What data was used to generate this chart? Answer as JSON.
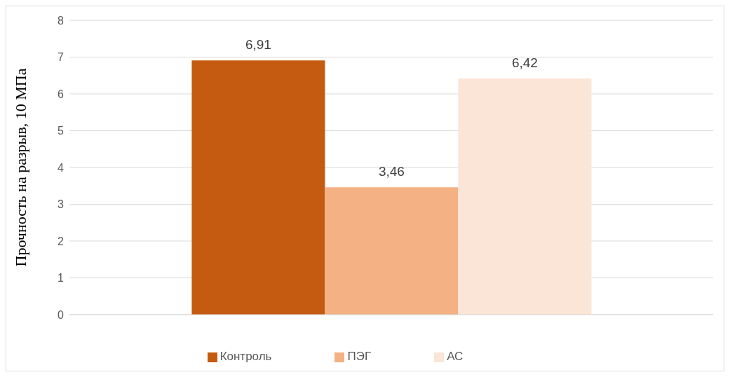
{
  "chart_data": {
    "type": "bar",
    "ylabel": "Прочность на разрыв, 10 МПа",
    "categories": [
      null
    ],
    "series": [
      {
        "name": "Контроль",
        "color": "#c55a11",
        "values": [
          6.91
        ],
        "value_labels": [
          "6,91"
        ]
      },
      {
        "name": "ПЭГ",
        "color": "#f4b183",
        "values": [
          3.46
        ],
        "value_labels": [
          "3,46"
        ]
      },
      {
        "name": "АС",
        "color": "#fbe5d6",
        "values": [
          6.42
        ],
        "value_labels": [
          "6,42"
        ]
      }
    ],
    "ylim": [
      0,
      8
    ],
    "yticks": [
      0,
      1,
      2,
      3,
      4,
      5,
      6,
      7,
      8
    ],
    "grid": "y",
    "legend": "bottom"
  }
}
